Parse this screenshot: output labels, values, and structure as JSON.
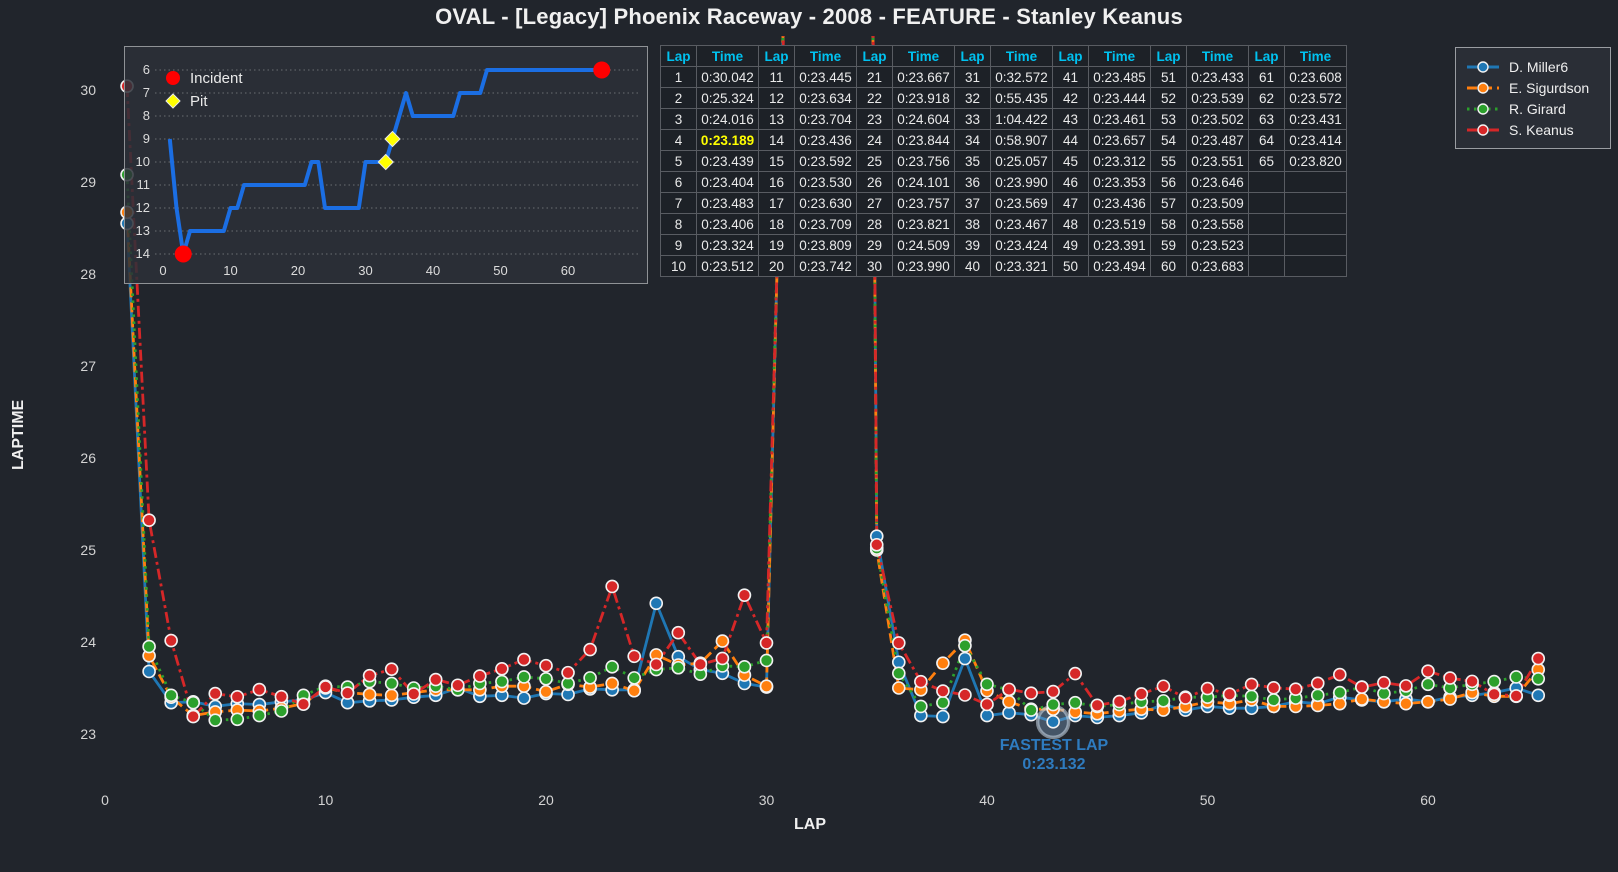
{
  "title": "OVAL - [Legacy] Phoenix Raceway - 2008 - FEATURE - Stanley Keanus",
  "colors": {
    "background": "#21252c",
    "panel": "#2a2e36",
    "panel_border": "#8f9296",
    "tick_text": "#d4d4d4",
    "table_border": "#595c62",
    "table_bg": "#1d2127",
    "table_header": "#00c2f0",
    "highlight": "#ffff00",
    "annotation_blue": "#2e7bbf",
    "inset_line_blue": "#1b6ee3",
    "incident_red": "#ff0000",
    "pit_yellow": "#ffff00"
  },
  "fastest_lap": {
    "label": "FASTEST LAP",
    "time": "0:23.132",
    "lap": 43,
    "value": 23.132,
    "driver": "D. Miller6"
  },
  "lap_table": {
    "col_headers": [
      "Lap",
      "Time"
    ],
    "column_pairs": 7,
    "rows_per_column": 10,
    "highlight_lap": 4,
    "times": [
      "0:30.042",
      "0:25.324",
      "0:24.016",
      "0:23.189",
      "0:23.439",
      "0:23.404",
      "0:23.483",
      "0:23.406",
      "0:23.324",
      "0:23.512",
      "0:23.445",
      "0:23.634",
      "0:23.704",
      "0:23.436",
      "0:23.592",
      "0:23.530",
      "0:23.630",
      "0:23.709",
      "0:23.809",
      "0:23.742",
      "0:23.667",
      "0:23.918",
      "0:24.604",
      "0:23.844",
      "0:23.756",
      "0:24.101",
      "0:23.757",
      "0:23.821",
      "0:24.509",
      "0:23.990",
      "0:32.572",
      "0:55.435",
      "1:04.422",
      "0:58.907",
      "0:25.057",
      "0:23.990",
      "0:23.569",
      "0:23.467",
      "0:23.424",
      "0:23.321",
      "0:23.485",
      "0:23.444",
      "0:23.461",
      "0:23.657",
      "0:23.312",
      "0:23.353",
      "0:23.436",
      "0:23.519",
      "0:23.391",
      "0:23.494",
      "0:23.433",
      "0:23.539",
      "0:23.502",
      "0:23.487",
      "0:23.551",
      "0:23.646",
      "0:23.509",
      "0:23.558",
      "0:23.523",
      "0:23.683",
      "0:23.608",
      "0:23.572",
      "0:23.431",
      "0:23.414",
      "0:23.820"
    ]
  },
  "chart_data": [
    {
      "id": "laptime-vs-lap",
      "type": "line",
      "xlabel": "LAP",
      "ylabel": "LAPTIME",
      "xticks": [
        0,
        10,
        20,
        30,
        40,
        50,
        60
      ],
      "yticks": [
        23,
        24,
        25,
        26,
        27,
        28,
        29,
        30
      ],
      "xlim": [
        0,
        66
      ],
      "ylim": [
        23,
        30.6
      ],
      "grid": false,
      "legend_position": "top-right",
      "x": [
        1,
        2,
        3,
        4,
        5,
        6,
        7,
        8,
        9,
        10,
        11,
        12,
        13,
        14,
        15,
        16,
        17,
        18,
        19,
        20,
        21,
        22,
        23,
        24,
        25,
        26,
        27,
        28,
        29,
        30,
        31,
        32,
        33,
        34,
        35,
        36,
        37,
        38,
        39,
        40,
        41,
        42,
        43,
        44,
        45,
        46,
        47,
        48,
        49,
        50,
        51,
        52,
        53,
        54,
        55,
        56,
        57,
        58,
        59,
        60,
        61,
        62,
        63,
        64,
        65
      ],
      "series": [
        {
          "name": "D. Miller6",
          "color": "#1f77b4",
          "line_style": "solid",
          "marker": "circle",
          "values": [
            28.55,
            23.68,
            23.34,
            23.35,
            23.3,
            23.33,
            23.32,
            23.35,
            23.37,
            23.45,
            23.34,
            23.36,
            23.37,
            23.4,
            23.42,
            23.5,
            23.41,
            23.42,
            23.39,
            23.44,
            23.43,
            23.49,
            23.48,
            23.48,
            24.42,
            23.84,
            23.7,
            23.66,
            23.55,
            23.51,
            33.0,
            55.0,
            63.0,
            57.0,
            25.15,
            23.78,
            23.2,
            23.19,
            23.82,
            23.2,
            23.23,
            23.21,
            23.132,
            23.2,
            23.18,
            23.2,
            23.23,
            23.32,
            23.26,
            23.3,
            23.28,
            23.28,
            23.3,
            23.35,
            23.33,
            23.4,
            23.37,
            23.35,
            23.38,
            23.35,
            23.4,
            23.42,
            23.45,
            23.5,
            23.42
          ]
        },
        {
          "name": "E. Sigurdson",
          "color": "#ff7f0e",
          "line_style": "dashed",
          "marker": "circle",
          "values": [
            28.67,
            23.85,
            23.4,
            23.2,
            23.24,
            23.26,
            23.25,
            23.28,
            23.33,
            23.5,
            23.45,
            23.43,
            23.42,
            23.45,
            23.48,
            23.48,
            23.48,
            23.52,
            23.52,
            23.46,
            23.54,
            23.51,
            23.55,
            23.47,
            23.86,
            23.75,
            23.77,
            24.01,
            23.64,
            23.52,
            33.0,
            55.0,
            63.0,
            57.0,
            25.0,
            23.5,
            23.48,
            23.77,
            24.02,
            23.47,
            23.35,
            23.27,
            23.27,
            23.24,
            23.22,
            23.25,
            23.27,
            23.26,
            23.3,
            23.35,
            23.33,
            23.37,
            23.3,
            23.3,
            23.31,
            23.33,
            23.38,
            23.35,
            23.33,
            23.35,
            23.38,
            23.45,
            23.41,
            23.41,
            23.7
          ]
        },
        {
          "name": "R. Girard",
          "color": "#2ca02c",
          "line_style": "dotted",
          "marker": "circle",
          "values": [
            29.08,
            23.95,
            23.42,
            23.34,
            23.15,
            23.16,
            23.2,
            23.25,
            23.42,
            23.52,
            23.51,
            23.57,
            23.55,
            23.5,
            23.52,
            23.48,
            23.55,
            23.57,
            23.62,
            23.6,
            23.55,
            23.61,
            23.73,
            23.61,
            23.7,
            23.72,
            23.65,
            23.74,
            23.73,
            23.8,
            33.0,
            55.0,
            63.0,
            57.0,
            25.02,
            23.66,
            23.3,
            23.34,
            23.96,
            23.54,
            23.48,
            23.26,
            23.32,
            23.34,
            23.3,
            23.32,
            23.35,
            23.36,
            23.4,
            23.4,
            23.42,
            23.41,
            23.37,
            23.39,
            23.42,
            23.45,
            23.51,
            23.44,
            23.47,
            23.54,
            23.5,
            23.54,
            23.57,
            23.62,
            23.6
          ]
        },
        {
          "name": "S. Keanus",
          "color": "#d62728",
          "line_style": "dashdot",
          "marker": "circle",
          "values": [
            30.042,
            25.324,
            24.016,
            23.189,
            23.439,
            23.404,
            23.483,
            23.406,
            23.324,
            23.512,
            23.445,
            23.634,
            23.704,
            23.436,
            23.592,
            23.53,
            23.63,
            23.709,
            23.809,
            23.742,
            23.667,
            23.918,
            24.604,
            23.844,
            23.756,
            24.101,
            23.757,
            23.821,
            24.509,
            23.99,
            32.572,
            55.435,
            64.422,
            58.907,
            25.057,
            23.99,
            23.569,
            23.467,
            23.424,
            23.321,
            23.485,
            23.444,
            23.461,
            23.657,
            23.312,
            23.353,
            23.436,
            23.519,
            23.391,
            23.494,
            23.433,
            23.539,
            23.502,
            23.487,
            23.551,
            23.646,
            23.509,
            23.558,
            23.523,
            23.683,
            23.608,
            23.572,
            23.431,
            23.414,
            23.82
          ]
        }
      ],
      "annotation": {
        "text": "FASTEST LAP 0:23.132",
        "lap": 43,
        "value": 23.132,
        "series": "D. Miller6"
      }
    },
    {
      "id": "position-vs-lap",
      "type": "line",
      "y_inverted": true,
      "grid": "horizontal-dotted",
      "yticks": [
        6,
        7,
        8,
        9,
        10,
        11,
        12,
        13,
        14
      ],
      "xticks": [
        0,
        10,
        20,
        30,
        40,
        50,
        60
      ],
      "positions": [
        9,
        12,
        14,
        13,
        13,
        13,
        13,
        13,
        13,
        12,
        12,
        11,
        11,
        11,
        11,
        11,
        11,
        11,
        11,
        11,
        11,
        10,
        10,
        12,
        12,
        12,
        12,
        12,
        12,
        10,
        10,
        10,
        10,
        9,
        8,
        7,
        8,
        8,
        8,
        8,
        8,
        8,
        8,
        7,
        7,
        7,
        7,
        6,
        6,
        6,
        6,
        6,
        6,
        6,
        6,
        6,
        6,
        6,
        6,
        6,
        6,
        6,
        6,
        6,
        6
      ],
      "incidents": [
        {
          "lap": 3,
          "position": 14
        },
        {
          "lap": 65,
          "position": 6
        }
      ],
      "pits": [
        {
          "lap": 33,
          "position": 10
        },
        {
          "lap": 34,
          "position": 9
        }
      ],
      "legend": [
        {
          "label": "Incident",
          "marker": "circle",
          "color": "#ff0000"
        },
        {
          "label": "Pit",
          "marker": "diamond",
          "color": "#ffff00"
        }
      ]
    }
  ]
}
